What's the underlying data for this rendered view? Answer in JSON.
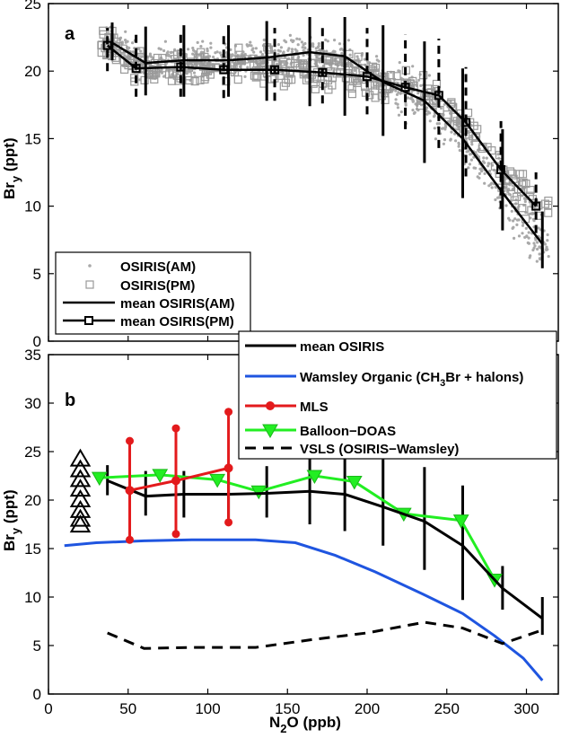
{
  "chart_data": [
    {
      "type": "scatter",
      "panel_label": "a",
      "xlim": [
        0,
        320
      ],
      "ylim": [
        0,
        25
      ],
      "yticks": [
        0,
        5,
        10,
        15,
        20,
        25
      ],
      "ylabel_main": "Br",
      "ylabel_sub": "y",
      "ylabel_tail": " (ppt)",
      "legend_position": "bottom-left",
      "legend": [
        {
          "label": "OSIRIS(AM)",
          "style": "gray-dots"
        },
        {
          "label": "OSIRIS(PM)",
          "style": "gray-squares"
        },
        {
          "label": "mean OSIRIS(AM)",
          "style": "black-line"
        },
        {
          "label": "mean OSIRIS(PM)",
          "style": "black-line-squares"
        }
      ],
      "scatter_am_note": "dense gray dots following the mean AM curve",
      "series": [
        {
          "name": "mean OSIRIS(AM)",
          "x": [
            40,
            61,
            85,
            113,
            137,
            164,
            186,
            210,
            236,
            260,
            285,
            310
          ],
          "y": [
            22.1,
            20.6,
            20.8,
            20.8,
            21.0,
            21.4,
            21.1,
            19.2,
            17.8,
            15.0,
            11.0,
            7.2
          ],
          "err_low": [
            20.8,
            18.2,
            18.1,
            18.1,
            17.8,
            17.4,
            16.7,
            15.2,
            13.2,
            10.6,
            8.2,
            5.4
          ],
          "err_high": [
            23.6,
            23.3,
            23.4,
            23.4,
            23.7,
            24.0,
            24.0,
            23.4,
            22.2,
            20.2,
            15.7,
            9.6
          ]
        },
        {
          "name": "mean OSIRIS(PM)",
          "x": [
            37,
            55,
            83,
            110,
            142,
            172,
            200,
            224,
            245,
            262,
            284,
            306
          ],
          "y": [
            21.9,
            20.2,
            20.3,
            20.1,
            20.1,
            19.9,
            19.6,
            18.8,
            18.2,
            16.2,
            12.7,
            10.0
          ],
          "err_low": [
            20.0,
            18.1,
            18.1,
            18.0,
            17.8,
            17.6,
            16.8,
            15.7,
            14.3,
            12.2,
            9.8,
            8.0
          ],
          "err_high": [
            23.2,
            22.7,
            22.9,
            22.9,
            23.2,
            23.3,
            23.2,
            22.7,
            22.4,
            20.3,
            16.3,
            12.5
          ]
        }
      ]
    },
    {
      "type": "line",
      "panel_label": "b",
      "xlim": [
        0,
        320
      ],
      "ylim": [
        0,
        35
      ],
      "xticks": [
        0,
        50,
        100,
        150,
        200,
        250,
        300
      ],
      "yticks": [
        0,
        5,
        10,
        15,
        20,
        25,
        30,
        35
      ],
      "xlabel_main": "N",
      "xlabel_sub": "2",
      "xlabel_tail": "O (ppb)",
      "ylabel_main": "Br",
      "ylabel_sub": "y",
      "ylabel_tail": " (ppt)",
      "legend_position": "top-right",
      "legend": [
        {
          "label": "mean OSIRIS",
          "color": "#000000",
          "style": "line"
        },
        {
          "label_pre": "Wamsley Organic (CH",
          "label_sub": "3",
          "label_post": "Br + halons)",
          "color": "#1f55e0",
          "style": "line"
        },
        {
          "label": "MLS",
          "color": "#e31a1c",
          "style": "line-dot"
        },
        {
          "label": "Balloon−DOAS",
          "color": "#22ee22",
          "style": "line-triangle"
        },
        {
          "label": "VSLS (OSIRIS−Wamsley)",
          "color": "#000000",
          "style": "dashed"
        }
      ],
      "series": [
        {
          "name": "mean OSIRIS",
          "x": [
            37,
            61,
            85,
            113,
            137,
            164,
            186,
            210,
            236,
            260,
            285,
            310
          ],
          "y": [
            22.0,
            20.4,
            20.6,
            20.6,
            20.7,
            20.9,
            20.6,
            19.3,
            17.8,
            15.3,
            10.9,
            7.8
          ],
          "err_low": [
            20.5,
            18.4,
            18.2,
            18.1,
            18.2,
            17.5,
            16.8,
            15.3,
            12.8,
            9.7,
            8.7,
            6.1
          ],
          "err_high": [
            23.6,
            23.0,
            23.0,
            23.1,
            23.5,
            24.4,
            24.9,
            24.2,
            23.4,
            21.5,
            13.2,
            10.0
          ]
        },
        {
          "name": "Wamsley Organic",
          "x": [
            10,
            30,
            60,
            90,
            130,
            155,
            180,
            205,
            235,
            260,
            280,
            298,
            310
          ],
          "y": [
            15.3,
            15.6,
            15.8,
            15.9,
            15.9,
            15.6,
            14.3,
            12.6,
            10.3,
            8.3,
            6.0,
            3.7,
            1.4
          ]
        },
        {
          "name": "VSLS",
          "x": [
            37,
            60,
            90,
            130,
            165,
            200,
            236,
            260,
            285,
            310
          ],
          "y": [
            6.3,
            4.7,
            4.8,
            4.8,
            5.6,
            6.3,
            7.4,
            6.8,
            5.2,
            6.6
          ]
        },
        {
          "name": "MLS",
          "x": [
            51,
            80,
            113
          ],
          "y": [
            21.0,
            22.0,
            23.3
          ],
          "err_low": [
            15.9,
            16.5,
            17.7
          ],
          "err_high": [
            26.1,
            27.4,
            29.1
          ]
        },
        {
          "name": "Balloon-DOAS",
          "x": [
            32,
            70,
            106,
            132,
            167,
            192,
            223,
            259,
            280
          ],
          "y": [
            22.3,
            22.6,
            22.1,
            20.9,
            22.5,
            21.9,
            18.6,
            17.9,
            11.8
          ]
        },
        {
          "name": "triangles",
          "x": [
            20,
            20,
            20,
            20,
            20,
            20,
            20,
            20
          ],
          "y": [
            24.2,
            23.1,
            22.1,
            21.1,
            20.0,
            18.9,
            18.0,
            17.4
          ]
        }
      ]
    }
  ]
}
